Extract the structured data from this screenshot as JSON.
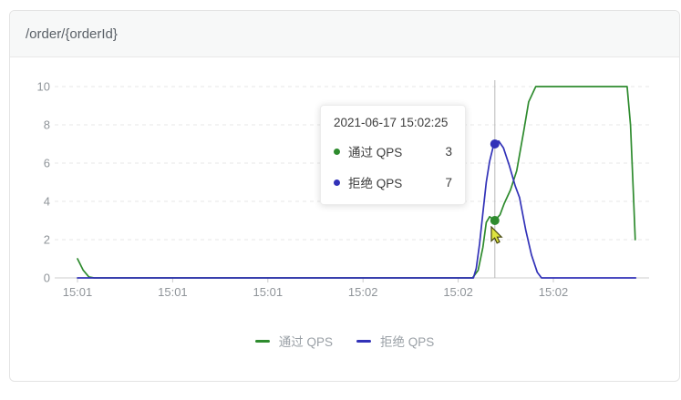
{
  "card": {
    "title": "/order/{orderId}"
  },
  "colors": {
    "pass": "#2e8b2e",
    "block": "#3232b8",
    "grid": "#e7e7e7",
    "axis_line": "#cccccc",
    "axis_text": "#8f9499",
    "legend_text": "#9aa0a6",
    "crosshair": "#b9b9b9",
    "tooltip_text": "#3c3c3c",
    "cursor_fill": "#dde33f",
    "cursor_stroke": "#45470f"
  },
  "tooltip": {
    "title": "2021-06-17 15:02:25",
    "rows": [
      {
        "name": "通过 QPS",
        "value": "3",
        "color_key": "pass"
      },
      {
        "name": "拒绝 QPS",
        "value": "7",
        "color_key": "block"
      }
    ]
  },
  "legend": [
    {
      "label": "通过 QPS",
      "color_key": "pass"
    },
    {
      "label": "拒绝 QPS",
      "color_key": "block"
    }
  ],
  "chart_data": {
    "type": "line",
    "title": "",
    "xlabel": "",
    "ylabel": "",
    "y_axis": {
      "ticks": [
        0,
        2,
        4,
        6,
        8,
        10
      ],
      "range": [
        0,
        10
      ]
    },
    "x_axis": {
      "tick_seconds": [
        0,
        20,
        40,
        60,
        80,
        100
      ],
      "tick_labels": [
        "15:01",
        "15:01",
        "15:01",
        "15:02",
        "15:02",
        "15:02"
      ]
    },
    "x_range_seconds": [
      0,
      117.3
    ],
    "grid": true,
    "legend_position": "bottom",
    "crosshair_seconds": 87.7,
    "series": [
      {
        "name": "通过 QPS",
        "color_key": "pass",
        "points": [
          [
            0,
            1.0
          ],
          [
            1.2,
            0.4
          ],
          [
            2.4,
            0.05
          ],
          [
            3.5,
            0
          ],
          [
            20,
            0
          ],
          [
            40,
            0
          ],
          [
            60,
            0
          ],
          [
            80,
            0
          ],
          [
            83,
            0
          ],
          [
            84.2,
            0.4
          ],
          [
            85.2,
            1.6
          ],
          [
            85.9,
            2.9
          ],
          [
            86.6,
            3.2
          ],
          [
            87.7,
            3.0
          ],
          [
            88.8,
            3.3
          ],
          [
            89.7,
            3.9
          ],
          [
            91,
            4.6
          ],
          [
            92.3,
            5.6
          ],
          [
            93.8,
            7.7
          ],
          [
            94.8,
            9.2
          ],
          [
            96.3,
            10
          ],
          [
            100,
            10
          ],
          [
            108,
            10
          ],
          [
            115.5,
            10
          ],
          [
            116.2,
            8
          ],
          [
            116.8,
            4.5
          ],
          [
            117.2,
            2.0
          ]
        ]
      },
      {
        "name": "拒绝 QPS",
        "color_key": "block",
        "points": [
          [
            0,
            0
          ],
          [
            20,
            0
          ],
          [
            40,
            0
          ],
          [
            60,
            0
          ],
          [
            80,
            0
          ],
          [
            83.2,
            0
          ],
          [
            83.8,
            0.5
          ],
          [
            84.5,
            1.8
          ],
          [
            85.2,
            3.4
          ],
          [
            85.9,
            5.0
          ],
          [
            86.6,
            6.1
          ],
          [
            87.3,
            6.8
          ],
          [
            87.7,
            7.0
          ],
          [
            88.5,
            7.15
          ],
          [
            89.5,
            6.8
          ],
          [
            90.7,
            5.9
          ],
          [
            92,
            4.8
          ],
          [
            92.9,
            4.2
          ],
          [
            94.2,
            2.5
          ],
          [
            95.4,
            1.2
          ],
          [
            96.6,
            0.3
          ],
          [
            97.5,
            0
          ],
          [
            100,
            0
          ],
          [
            110,
            0
          ],
          [
            117.3,
            0
          ]
        ]
      }
    ],
    "markers": [
      {
        "series": "通过 QPS",
        "t": 87.7,
        "value": 3,
        "color_key": "pass"
      },
      {
        "series": "拒绝 QPS",
        "t": 87.7,
        "value": 7,
        "color_key": "block"
      }
    ]
  }
}
